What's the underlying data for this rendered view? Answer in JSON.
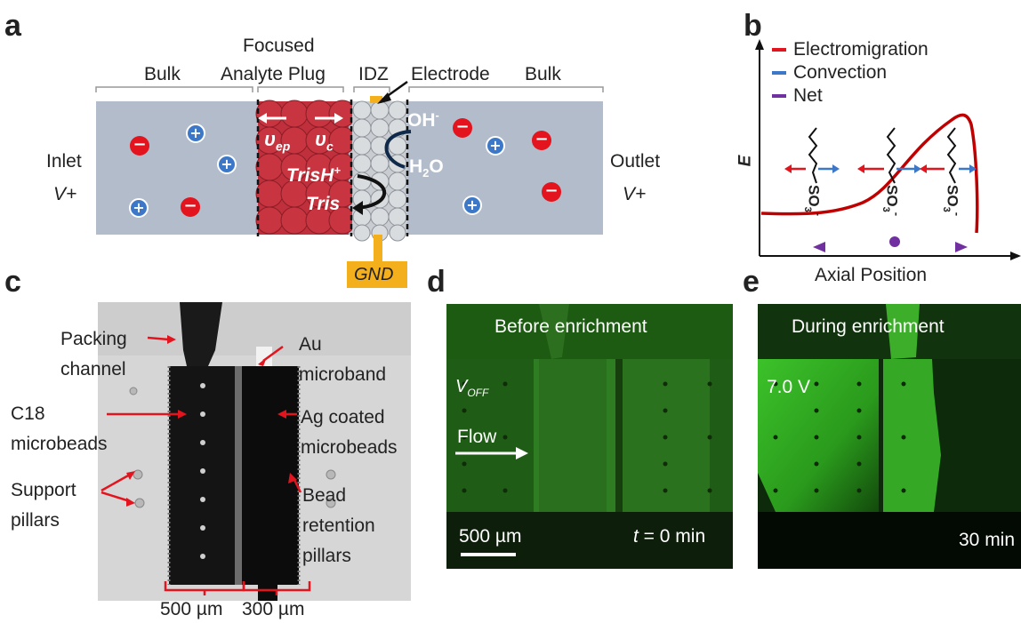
{
  "panel_labels": {
    "a": "a",
    "b": "b",
    "c": "c",
    "d": "d",
    "e": "e"
  },
  "panel_a": {
    "label_bulk_left": "Bulk",
    "label_focused": "Focused",
    "label_analyte_plug": "Analyte Plug",
    "label_idz": "IDZ",
    "label_electrode": "Electrode",
    "label_bulk_right": "Bulk",
    "label_inlet": "Inlet",
    "label_inlet_v": "V+",
    "label_outlet": "Outlet",
    "label_outlet_v": "V+",
    "label_gnd": "GND",
    "label_oh": "OH",
    "label_oh_sup": "-",
    "label_h2o_h": "H",
    "label_h2o_sub": "2",
    "label_h2o_o": "O",
    "label_trish": "TrisH",
    "label_trish_sup": "+",
    "label_tris": "Tris",
    "label_vep": "υ",
    "label_vep_sub": "ep",
    "label_vc": "υ",
    "label_vc_sub": "c",
    "colors": {
      "channel": "#b2bccb",
      "plug": "#c0303c",
      "idz": "#c9cdd2",
      "gnd": "#f4b01c"
    }
  },
  "panel_b": {
    "legend": [
      {
        "label": "Electromigration",
        "color": "#e3141e"
      },
      {
        "label": "Convection",
        "color": "#3d78c8"
      },
      {
        "label": "Net",
        "color": "#7030a0"
      }
    ],
    "ylabel": "E",
    "xlabel": "Axial Position",
    "molecule_label": "SO",
    "molecule_sub": "3",
    "molecule_charge": "-"
  },
  "panel_c": {
    "label_packing": "Packing",
    "label_channel": "channel",
    "label_au": "Au",
    "label_microband": "microband",
    "label_c18": "C18",
    "label_c18_beads": "microbeads",
    "label_ag": "Ag coated",
    "label_ag_beads": "microbeads",
    "label_support": "Support",
    "label_pillars": "pillars",
    "label_bead": "Bead",
    "label_retention": "retention",
    "label_ret_pillars": "pillars",
    "scale_500": "500 µm",
    "scale_300": "300 µm"
  },
  "panel_d": {
    "title": "Before enrichment",
    "voff": "V",
    "voff_sub": "OFF",
    "flow": "Flow",
    "scalebar": "500 µm",
    "time_t": "t",
    "time_rest": " = 0 min"
  },
  "panel_e": {
    "title": "During enrichment",
    "voltage": "7.0 V",
    "time": "30 min"
  }
}
